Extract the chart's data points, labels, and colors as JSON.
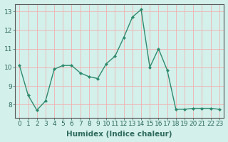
{
  "x": [
    0,
    1,
    2,
    3,
    4,
    5,
    6,
    7,
    8,
    9,
    10,
    11,
    12,
    13,
    14,
    15,
    16,
    17,
    18,
    19,
    20,
    21,
    22,
    23
  ],
  "y": [
    10.1,
    8.5,
    7.7,
    8.2,
    9.9,
    10.1,
    10.1,
    9.7,
    9.5,
    9.4,
    10.2,
    10.6,
    11.6,
    12.7,
    13.1,
    10.0,
    11.0,
    9.85,
    7.75,
    7.75,
    7.8,
    7.8,
    7.8,
    7.75
  ],
  "line_color": "#2e8b6e",
  "marker": "D",
  "marker_size": 2.0,
  "linewidth": 1.0,
  "xlabel": "Humidex (Indice chaleur)",
  "ylabel": "",
  "title": "",
  "xlim": [
    -0.5,
    23.5
  ],
  "ylim": [
    7.3,
    13.4
  ],
  "yticks": [
    8,
    9,
    10,
    11,
    12,
    13
  ],
  "xticks": [
    0,
    1,
    2,
    3,
    4,
    5,
    6,
    7,
    8,
    9,
    10,
    11,
    12,
    13,
    14,
    15,
    16,
    17,
    18,
    19,
    20,
    21,
    22,
    23
  ],
  "bg_color": "#d4f0eb",
  "grid_color": "#f0b0b0",
  "tick_label_fontsize": 6.5,
  "xlabel_fontsize": 7.5,
  "spine_color": "#555555"
}
